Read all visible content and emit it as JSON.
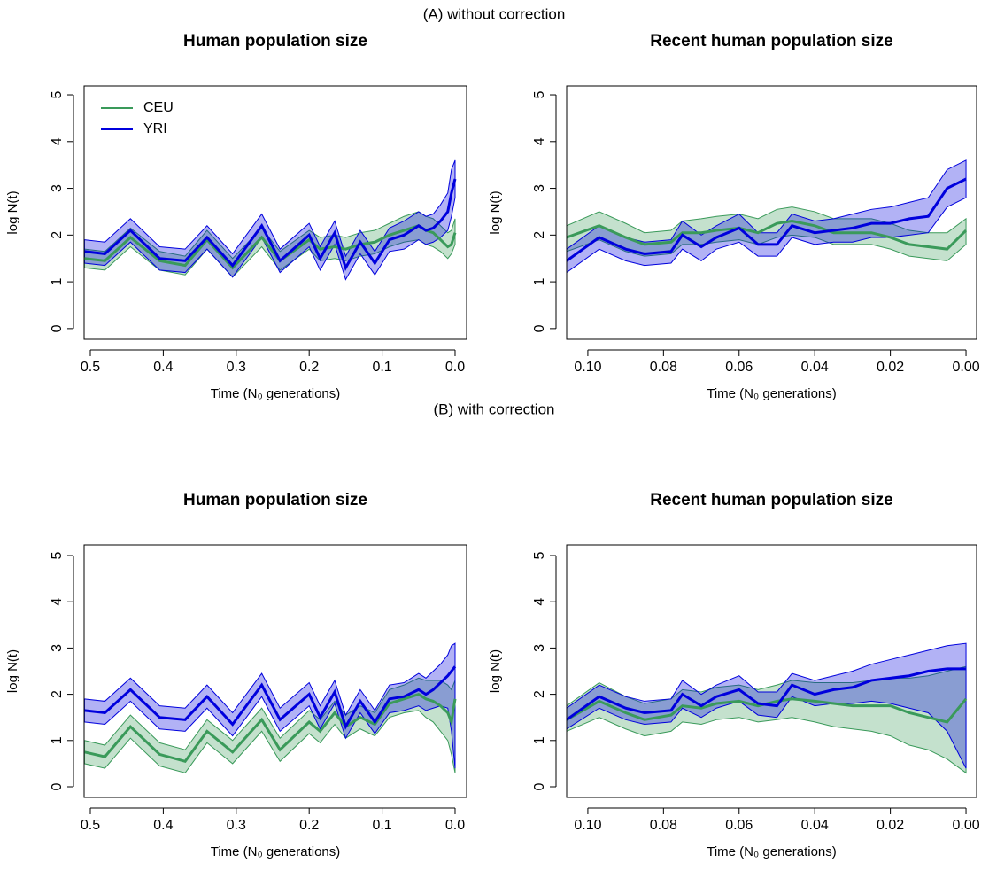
{
  "section_titles": [
    "(A) without correction",
    "(B) with correction"
  ],
  "chart_data": [
    {
      "type": "line",
      "title": "Human population size",
      "xlabel": "Time (N₀ generations)",
      "ylabel": "log N(t)",
      "xlim": [
        0.5085,
        -0.0158
      ],
      "ylim": [
        -0.23,
        5.19
      ],
      "xticks": [
        0.5,
        0.4,
        0.3,
        0.2,
        0.1,
        {
          "value": 0,
          "label": "0.0"
        }
      ],
      "yticks": [
        0,
        1,
        2,
        3,
        4,
        5
      ],
      "legend": "topleft",
      "x": [
        0.508,
        0.48,
        0.445,
        0.405,
        0.37,
        0.34,
        0.305,
        0.265,
        0.24,
        0.2,
        0.185,
        0.165,
        0.15,
        0.13,
        0.11,
        0.09,
        0.07,
        0.05,
        0.04,
        0.03,
        0.02,
        0.01,
        0.005,
        0.0
      ],
      "series": [
        {
          "name": "CEU",
          "color": "#3a9a5a",
          "values": [
            1.5,
            1.45,
            1.95,
            1.45,
            1.35,
            1.9,
            1.3,
            1.95,
            1.45,
            1.9,
            1.7,
            1.75,
            1.7,
            1.8,
            1.85,
            2.0,
            2.1,
            2.2,
            2.1,
            2.05,
            1.9,
            1.75,
            1.8,
            2.05
          ],
          "lower": [
            1.3,
            1.25,
            1.75,
            1.25,
            1.15,
            1.7,
            1.1,
            1.75,
            1.25,
            1.7,
            1.45,
            1.5,
            1.45,
            1.55,
            1.6,
            1.75,
            1.85,
            1.9,
            1.8,
            1.75,
            1.65,
            1.5,
            1.6,
            1.8
          ],
          "upper": [
            1.7,
            1.65,
            2.15,
            1.65,
            1.55,
            2.1,
            1.5,
            2.15,
            1.65,
            2.1,
            1.95,
            2.0,
            1.95,
            2.05,
            2.1,
            2.25,
            2.4,
            2.5,
            2.4,
            2.35,
            2.2,
            2.05,
            2.1,
            2.35
          ]
        },
        {
          "name": "YRI",
          "color": "#0000dd",
          "values": [
            1.65,
            1.6,
            2.1,
            1.5,
            1.45,
            1.95,
            1.35,
            2.2,
            1.45,
            2.0,
            1.5,
            2.05,
            1.3,
            1.85,
            1.4,
            1.9,
            2.0,
            2.2,
            2.1,
            2.15,
            2.3,
            2.5,
            2.9,
            3.2
          ],
          "lower": [
            1.4,
            1.35,
            1.85,
            1.25,
            1.2,
            1.7,
            1.1,
            1.95,
            1.2,
            1.75,
            1.25,
            1.8,
            1.05,
            1.6,
            1.15,
            1.65,
            1.7,
            1.9,
            1.8,
            1.85,
            1.95,
            2.1,
            2.4,
            2.8
          ],
          "upper": [
            1.9,
            1.85,
            2.35,
            1.75,
            1.7,
            2.2,
            1.6,
            2.45,
            1.7,
            2.25,
            1.75,
            2.3,
            1.55,
            2.1,
            1.65,
            2.15,
            2.3,
            2.5,
            2.4,
            2.45,
            2.65,
            2.9,
            3.4,
            3.6
          ]
        }
      ]
    },
    {
      "type": "line",
      "title": "Recent human population size",
      "xlabel": "Time (N₀ generations)",
      "ylabel": "log N(t)",
      "xlim": [
        0.1056,
        -0.0028
      ],
      "ylim": [
        -0.23,
        5.19
      ],
      "xticks": [
        {
          "value": 0.1,
          "label": "0.10"
        },
        0.08,
        0.06,
        0.04,
        0.02,
        {
          "value": 0,
          "label": "0.00"
        }
      ],
      "yticks": [
        0,
        1,
        2,
        3,
        4,
        5
      ],
      "x": [
        0.1056,
        0.097,
        0.09,
        0.085,
        0.078,
        0.075,
        0.07,
        0.066,
        0.06,
        0.055,
        0.05,
        0.046,
        0.04,
        0.035,
        0.03,
        0.025,
        0.02,
        0.015,
        0.01,
        0.005,
        0.0
      ],
      "series": [
        {
          "color": "#3a9a5a",
          "values": [
            1.95,
            2.2,
            1.95,
            1.8,
            1.85,
            2.05,
            2.05,
            2.1,
            2.15,
            2.05,
            2.25,
            2.3,
            2.2,
            2.05,
            2.05,
            2.05,
            1.95,
            1.8,
            1.75,
            1.7,
            2.1
          ],
          "lower": [
            1.65,
            1.9,
            1.65,
            1.55,
            1.6,
            1.8,
            1.8,
            1.85,
            1.9,
            1.8,
            1.95,
            2.0,
            1.95,
            1.8,
            1.8,
            1.8,
            1.7,
            1.55,
            1.5,
            1.45,
            1.8
          ],
          "upper": [
            2.2,
            2.5,
            2.25,
            2.05,
            2.1,
            2.3,
            2.35,
            2.4,
            2.45,
            2.35,
            2.55,
            2.6,
            2.5,
            2.35,
            2.35,
            2.35,
            2.25,
            2.1,
            2.05,
            2.05,
            2.35
          ]
        },
        {
          "color": "#0000dd",
          "values": [
            1.45,
            1.95,
            1.7,
            1.6,
            1.65,
            2.0,
            1.75,
            1.95,
            2.15,
            1.8,
            1.8,
            2.2,
            2.05,
            2.1,
            2.15,
            2.25,
            2.25,
            2.35,
            2.4,
            3.0,
            3.2
          ],
          "lower": [
            1.2,
            1.7,
            1.45,
            1.35,
            1.4,
            1.7,
            1.45,
            1.7,
            1.85,
            1.55,
            1.55,
            1.95,
            1.8,
            1.85,
            1.85,
            1.95,
            1.95,
            2.0,
            2.05,
            2.6,
            2.8
          ],
          "upper": [
            1.7,
            2.2,
            1.95,
            1.85,
            1.9,
            2.3,
            2.0,
            2.2,
            2.45,
            2.05,
            2.05,
            2.45,
            2.3,
            2.35,
            2.45,
            2.55,
            2.6,
            2.7,
            2.8,
            3.4,
            3.6
          ]
        }
      ]
    },
    {
      "type": "line",
      "title": "Human population size",
      "xlabel": "Time (N₀ generations)",
      "ylabel": "log N(t)",
      "xlim": [
        0.5085,
        -0.0158
      ],
      "ylim": [
        -0.23,
        5.23
      ],
      "xticks": [
        0.5,
        0.4,
        0.3,
        0.2,
        0.1,
        {
          "value": 0,
          "label": "0.0"
        }
      ],
      "yticks": [
        0,
        1,
        2,
        3,
        4,
        5
      ],
      "x": [
        0.508,
        0.48,
        0.445,
        0.405,
        0.37,
        0.34,
        0.305,
        0.265,
        0.24,
        0.2,
        0.185,
        0.165,
        0.15,
        0.13,
        0.11,
        0.09,
        0.07,
        0.05,
        0.04,
        0.03,
        0.02,
        0.01,
        0.005,
        0.0
      ],
      "series": [
        {
          "color": "#3a9a5a",
          "values": [
            0.75,
            0.65,
            1.3,
            0.7,
            0.55,
            1.2,
            0.75,
            1.45,
            0.8,
            1.4,
            1.2,
            1.6,
            1.3,
            1.5,
            1.35,
            1.8,
            1.9,
            2.0,
            1.9,
            1.85,
            1.75,
            1.6,
            1.4,
            1.9
          ],
          "lower": [
            0.5,
            0.4,
            1.05,
            0.45,
            0.3,
            0.95,
            0.5,
            1.2,
            0.55,
            1.15,
            0.95,
            1.35,
            1.05,
            1.25,
            1.1,
            1.5,
            1.6,
            1.65,
            1.5,
            1.4,
            1.2,
            1.0,
            0.7,
            0.3
          ],
          "upper": [
            1.0,
            0.9,
            1.55,
            0.95,
            0.8,
            1.45,
            1.0,
            1.7,
            1.05,
            1.65,
            1.45,
            1.85,
            1.55,
            1.75,
            1.6,
            2.1,
            2.2,
            2.35,
            2.3,
            2.3,
            2.3,
            2.2,
            2.1,
            2.3
          ]
        },
        {
          "color": "#0000dd",
          "values": [
            1.65,
            1.6,
            2.1,
            1.5,
            1.45,
            1.95,
            1.35,
            2.2,
            1.45,
            2.0,
            1.5,
            2.05,
            1.3,
            1.85,
            1.4,
            1.9,
            1.95,
            2.1,
            2.0,
            2.1,
            2.25,
            2.4,
            2.5,
            2.6
          ],
          "lower": [
            1.4,
            1.35,
            1.85,
            1.25,
            1.2,
            1.7,
            1.1,
            1.95,
            1.2,
            1.75,
            1.25,
            1.8,
            1.05,
            1.6,
            1.15,
            1.6,
            1.65,
            1.75,
            1.65,
            1.7,
            1.75,
            1.7,
            1.2,
            0.4
          ],
          "upper": [
            1.9,
            1.85,
            2.35,
            1.75,
            1.7,
            2.2,
            1.6,
            2.45,
            1.7,
            2.25,
            1.75,
            2.3,
            1.55,
            2.1,
            1.65,
            2.2,
            2.25,
            2.45,
            2.35,
            2.5,
            2.65,
            2.85,
            3.05,
            3.1
          ]
        }
      ]
    },
    {
      "type": "line",
      "title": "Recent human population size",
      "xlabel": "Time (N₀ generations)",
      "ylabel": "log N(t)",
      "xlim": [
        0.1056,
        -0.0028
      ],
      "ylim": [
        -0.23,
        5.23
      ],
      "xticks": [
        {
          "value": 0.1,
          "label": "0.10"
        },
        0.08,
        0.06,
        0.04,
        0.02,
        {
          "value": 0,
          "label": "0.00"
        }
      ],
      "yticks": [
        0,
        1,
        2,
        3,
        4,
        5
      ],
      "x": [
        0.1056,
        0.097,
        0.09,
        0.085,
        0.078,
        0.075,
        0.07,
        0.066,
        0.06,
        0.055,
        0.05,
        0.046,
        0.04,
        0.035,
        0.03,
        0.025,
        0.02,
        0.015,
        0.01,
        0.005,
        0.0
      ],
      "series": [
        {
          "color": "#3a9a5a",
          "values": [
            1.45,
            1.85,
            1.6,
            1.45,
            1.55,
            1.75,
            1.7,
            1.8,
            1.85,
            1.75,
            1.85,
            1.9,
            1.85,
            1.8,
            1.75,
            1.75,
            1.75,
            1.6,
            1.5,
            1.4,
            1.9
          ],
          "lower": [
            1.2,
            1.5,
            1.25,
            1.1,
            1.2,
            1.4,
            1.35,
            1.45,
            1.5,
            1.4,
            1.45,
            1.5,
            1.4,
            1.3,
            1.25,
            1.2,
            1.1,
            0.9,
            0.8,
            0.6,
            0.3
          ],
          "upper": [
            1.75,
            2.25,
            1.95,
            1.8,
            1.9,
            2.1,
            2.05,
            2.15,
            2.2,
            2.1,
            2.2,
            2.3,
            2.25,
            2.25,
            2.25,
            2.3,
            2.35,
            2.35,
            2.4,
            2.5,
            2.6
          ]
        },
        {
          "color": "#0000dd",
          "values": [
            1.45,
            1.95,
            1.7,
            1.6,
            1.65,
            2.0,
            1.75,
            1.95,
            2.1,
            1.8,
            1.75,
            2.2,
            2.0,
            2.1,
            2.15,
            2.3,
            2.35,
            2.4,
            2.5,
            2.55,
            2.55
          ],
          "lower": [
            1.25,
            1.7,
            1.45,
            1.35,
            1.4,
            1.7,
            1.5,
            1.7,
            1.85,
            1.55,
            1.5,
            1.95,
            1.75,
            1.8,
            1.8,
            1.85,
            1.8,
            1.7,
            1.6,
            1.2,
            0.4
          ],
          "upper": [
            1.7,
            2.2,
            1.95,
            1.85,
            1.9,
            2.3,
            2.0,
            2.2,
            2.4,
            2.05,
            2.05,
            2.45,
            2.3,
            2.4,
            2.5,
            2.65,
            2.75,
            2.85,
            2.95,
            3.05,
            3.1
          ]
        }
      ]
    }
  ]
}
